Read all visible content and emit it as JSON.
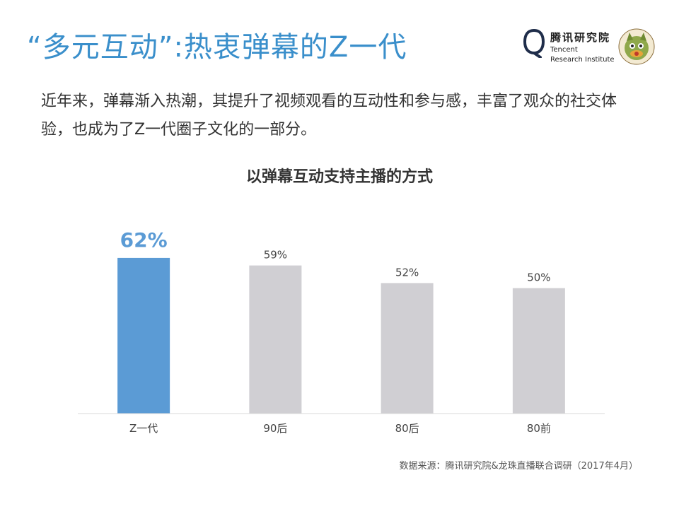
{
  "slide": {
    "title": "“多元互动”:热衷弹幕的Z一代",
    "intro": "近年来，弹幕渐入热潮，其提升了视频观看的互动性和参与感，丰富了观众的社交体验，也成为了Z一代圈子文化的一部分。",
    "source": "数据来源：腾讯研究院&龙珠直播联合调研（2017年4月）"
  },
  "logo": {
    "name_cn": "腾讯研究院",
    "name_en_line1": "Tencent",
    "name_en_line2": "Research Institute"
  },
  "colors": {
    "title": "#3a8fcb",
    "highlight_bar": "#5b9bd5",
    "other_bar": "#d0cfd3",
    "axis": "#d9d9d9"
  },
  "chart_data": {
    "type": "bar",
    "title": "以弹幕互动支持主播的方式",
    "categories": [
      "Z一代",
      "90后",
      "80后",
      "80前"
    ],
    "values": [
      62,
      59,
      52,
      50
    ],
    "value_labels": [
      "62%",
      "59%",
      "52%",
      "50%"
    ],
    "highlight_index": 0,
    "ylim": [
      0,
      100
    ],
    "grid": false,
    "legend": "none"
  }
}
